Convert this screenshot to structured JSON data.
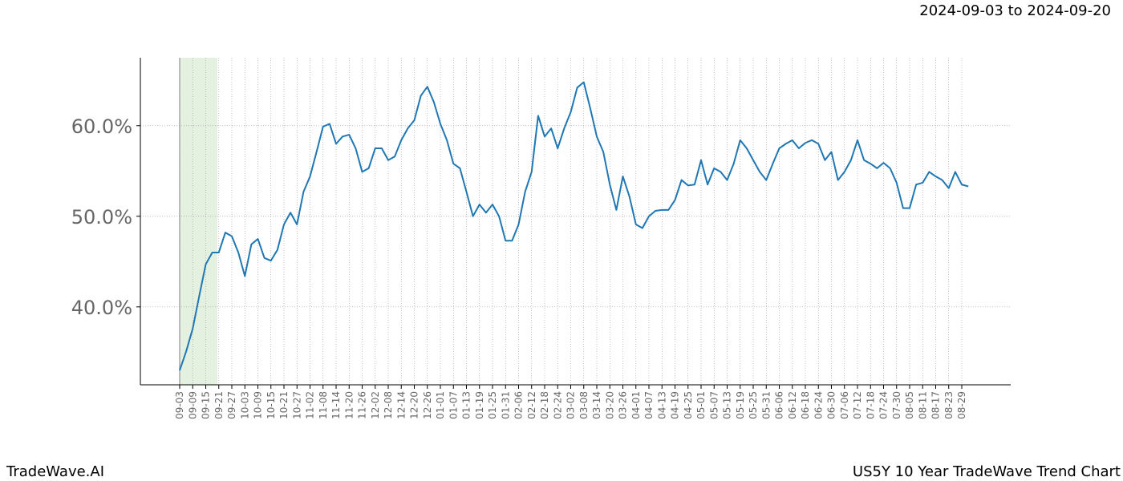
{
  "chart_data": {
    "type": "line",
    "title": "US5Y 10 Year TradeWave Trend Chart",
    "subtitle": "2024-09-03 to 2024-09-20",
    "brand": "TradeWave.AI",
    "categories": [
      "09-03",
      null,
      "09-09",
      null,
      "09-15",
      null,
      "09-21",
      null,
      "09-27",
      null,
      "10-03",
      null,
      "10-09",
      null,
      "10-15",
      null,
      "10-21",
      null,
      "10-27",
      null,
      "11-02",
      null,
      "11-08",
      null,
      "11-14",
      null,
      "11-20",
      null,
      "11-26",
      null,
      "12-02",
      null,
      "12-08",
      null,
      "12-14",
      null,
      "12-20",
      null,
      "12-26",
      null,
      "01-01",
      null,
      "01-07",
      null,
      "01-13",
      null,
      "01-19",
      null,
      "01-25",
      null,
      "01-31",
      null,
      "02-06",
      null,
      "02-12",
      null,
      "02-18",
      null,
      "02-24",
      null,
      "03-02",
      null,
      "03-08",
      null,
      "03-14",
      null,
      "03-20",
      null,
      "03-26",
      null,
      "04-01",
      null,
      "04-07",
      null,
      "04-13",
      null,
      "04-19",
      null,
      "04-25",
      null,
      "05-01",
      null,
      "05-07",
      null,
      "05-13",
      null,
      "05-19",
      null,
      "05-25",
      null,
      "05-31",
      null,
      "06-06",
      null,
      "06-12",
      null,
      "06-18",
      null,
      "06-24",
      null,
      "06-30",
      null,
      "07-06",
      null,
      "07-12",
      null,
      "07-18",
      null,
      "07-24",
      null,
      "07-30",
      null,
      "08-05",
      null,
      "08-11",
      null,
      "08-17",
      null,
      "08-23",
      null,
      "08-29",
      null
    ],
    "series": [
      {
        "name": "US5Y",
        "color": "#1f77b4",
        "values": [
          33.0,
          35.1,
          37.6,
          41.2,
          44.7,
          46.0,
          46.0,
          48.2,
          47.8,
          46.0,
          43.4,
          46.9,
          47.5,
          45.4,
          45.1,
          46.3,
          49.1,
          50.4,
          49.1,
          52.7,
          54.4,
          57.1,
          59.9,
          60.2,
          58.0,
          58.8,
          59.0,
          57.5,
          54.9,
          55.3,
          57.5,
          57.5,
          56.2,
          56.6,
          58.4,
          59.7,
          60.6,
          63.3,
          64.3,
          62.6,
          60.2,
          58.4,
          55.8,
          55.3,
          52.7,
          50.0,
          51.3,
          50.4,
          51.3,
          50.0,
          47.3,
          47.3,
          49.1,
          52.7,
          54.9,
          61.1,
          58.8,
          59.7,
          57.5,
          59.7,
          61.5,
          64.2,
          64.8,
          61.9,
          58.8,
          57.1,
          53.5,
          50.7,
          54.4,
          52.2,
          49.1,
          48.7,
          50.0,
          50.6,
          50.7,
          50.7,
          51.8,
          54.0,
          53.4,
          53.5,
          56.2,
          53.5,
          55.3,
          54.9,
          54.0,
          55.8,
          58.4,
          57.5,
          56.2,
          54.9,
          54.0,
          55.8,
          57.5,
          58.0,
          58.4,
          57.5,
          58.1,
          58.4,
          58.0,
          56.2,
          57.1,
          54.0,
          54.9,
          56.2,
          58.4,
          56.2,
          55.8,
          55.3,
          55.9,
          55.3,
          53.7,
          50.9,
          50.9,
          53.5,
          53.7,
          54.9,
          54.4,
          54.0,
          53.1,
          54.9,
          53.5,
          53.3
        ]
      }
    ],
    "ylim": [
      31.4,
      67.5
    ],
    "yticks": [
      {
        "value": 40,
        "label": "40.0%"
      },
      {
        "value": 50,
        "label": "50.0%"
      },
      {
        "value": 60,
        "label": "60.0%"
      }
    ],
    "grid": true
  }
}
